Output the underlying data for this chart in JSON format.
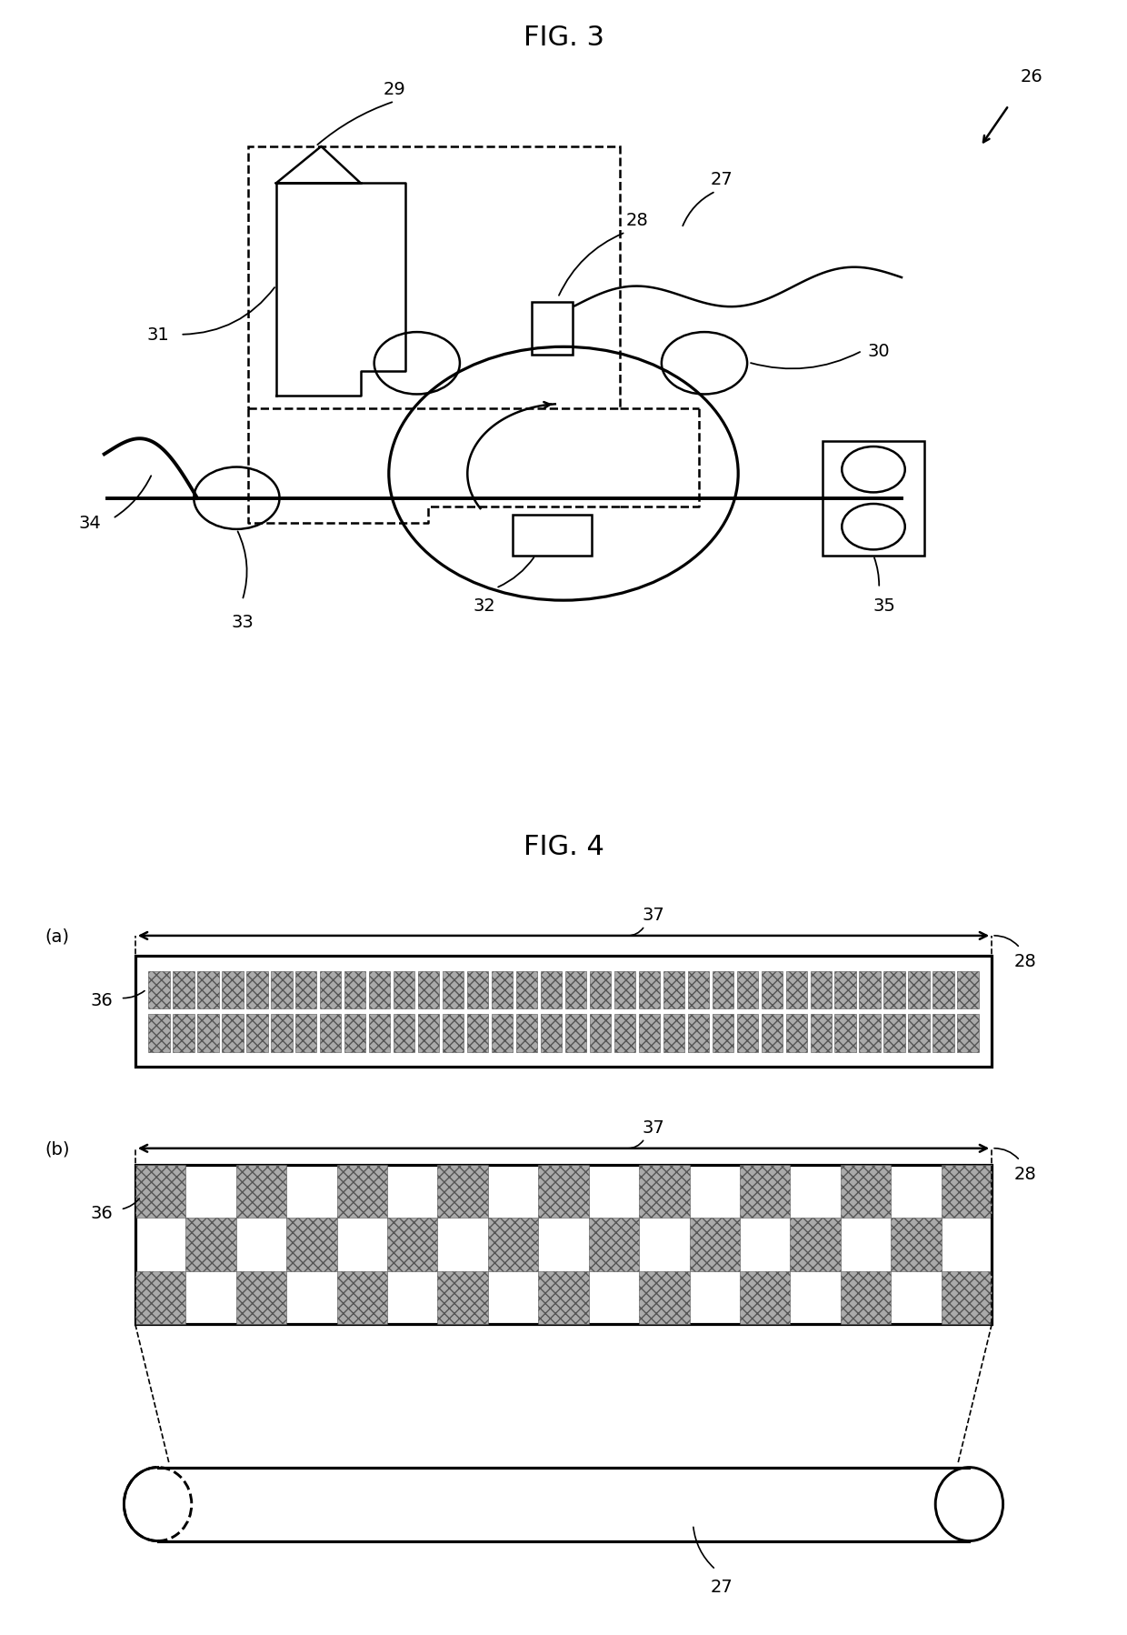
{
  "fig3_title": "FIG. 3",
  "fig4_title": "FIG. 4",
  "bg_color": "#ffffff",
  "line_color": "#000000",
  "label_fontsize": 14,
  "title_fontsize": 22
}
